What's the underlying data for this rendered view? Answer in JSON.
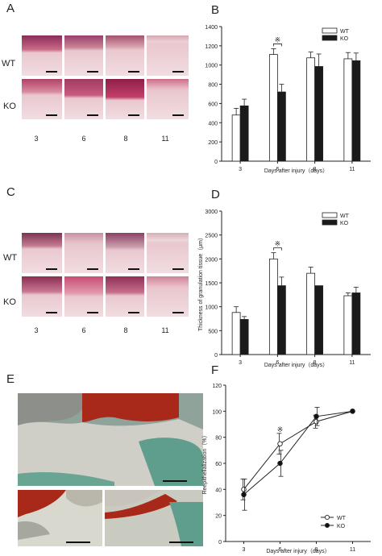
{
  "panels": {
    "A": {
      "letter": "A",
      "row_labels": [
        "WT",
        "KO"
      ],
      "day_labels": [
        "3",
        "6",
        "8",
        "11"
      ]
    },
    "C": {
      "letter": "C",
      "row_labels": [
        "WT",
        "KO"
      ],
      "day_labels": [
        "3",
        "6",
        "8",
        "11"
      ]
    },
    "E": {
      "letter": "E"
    }
  },
  "colors": {
    "wt": "#ffffff",
    "ko": "#1a1a1a",
    "stain_he": "#d68a98",
    "stain_mt": "#b23a1e",
    "counter": "#7fb8a8"
  },
  "chart_data": [
    {
      "letter": "B",
      "type": "bar",
      "categories": [
        "3",
        "6",
        "8",
        "11"
      ],
      "series": [
        {
          "name": "WT",
          "values": [
            480,
            1110,
            1075,
            1065
          ],
          "errors": [
            70,
            60,
            60,
            65
          ]
        },
        {
          "name": "KO",
          "values": [
            575,
            720,
            985,
            1045
          ],
          "errors": [
            70,
            80,
            130,
            80
          ]
        }
      ],
      "title": "",
      "xlabel": "Days after injury（days）",
      "ylabel": "",
      "ylim": [
        0,
        1400
      ],
      "yticks": [
        "0",
        "200",
        "400",
        "600",
        "800",
        "1000",
        "1200",
        "1400"
      ],
      "significance": {
        "category": "6",
        "mark": "※"
      },
      "legend": "top-right"
    },
    {
      "letter": "D",
      "type": "bar",
      "categories": [
        "3",
        "6",
        "8",
        "11"
      ],
      "series": [
        {
          "name": "WT",
          "values": [
            880,
            2000,
            1700,
            1230
          ],
          "errors": [
            120,
            130,
            130,
            60
          ]
        },
        {
          "name": "KO",
          "values": [
            735,
            1440,
            1440,
            1290
          ],
          "errors": [
            60,
            180,
            0,
            120
          ]
        }
      ],
      "title": "",
      "xlabel": "Days after injury（days）",
      "ylabel": "Thickness of granulation tissue（μm）",
      "ylim": [
        0,
        3000
      ],
      "yticks": [
        "0",
        "500",
        "1000",
        "1500",
        "2000",
        "2500",
        "3000"
      ],
      "significance": {
        "category": "6",
        "mark": "※"
      },
      "legend": "top-right"
    },
    {
      "letter": "F",
      "type": "line",
      "x": [
        "3",
        "6",
        "8",
        "11"
      ],
      "series": [
        {
          "name": "WT",
          "marker": "open-circle",
          "values": [
            40,
            75,
            92,
            100
          ],
          "errors": [
            8,
            8,
            5,
            0
          ]
        },
        {
          "name": "KO",
          "marker": "filled-circle",
          "values": [
            36,
            60,
            96,
            100
          ],
          "errors": [
            12,
            10,
            7,
            0
          ]
        }
      ],
      "title": "",
      "xlabel": "Days after injury（days）",
      "ylabel": "Reepithelialization（%）",
      "ylim": [
        0,
        120
      ],
      "yticks": [
        "0",
        "20",
        "40",
        "60",
        "80",
        "100",
        "120"
      ],
      "significance": {
        "category": "6",
        "mark": "※"
      },
      "legend": "bottom-right"
    }
  ]
}
